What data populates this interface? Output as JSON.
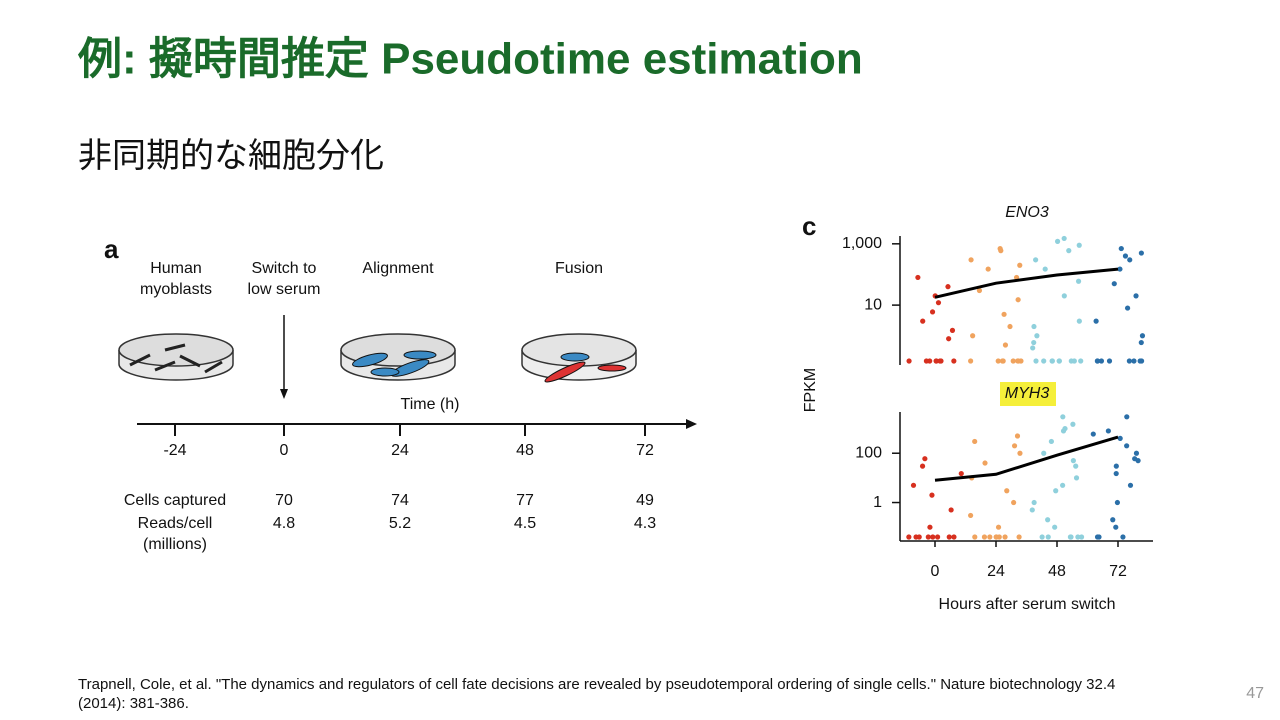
{
  "header": {
    "title": "例: 擬時間推定 Pseudotime estimation",
    "subtitle": "非同期的な細胞分化"
  },
  "panel_a": {
    "label": "a",
    "stages": [
      [
        "Human",
        "myoblasts"
      ],
      [
        "Switch to",
        "low serum"
      ],
      [
        "Alignment"
      ],
      [
        "Fusion"
      ]
    ],
    "axis_label": "Time (h)",
    "times": [
      -24,
      0,
      24,
      48,
      72
    ],
    "rows": [
      {
        "label": [
          "Cells captured"
        ],
        "values": [
          70,
          74,
          77,
          49
        ]
      },
      {
        "label": [
          "Reads/cell",
          "(millions)"
        ],
        "values": [
          4.8,
          5.2,
          4.5,
          4.3
        ]
      }
    ]
  },
  "panel_c": {
    "label": "c",
    "ylabel": "FPKM"
  },
  "chart_data": [
    {
      "type": "scatter",
      "title": "ENO3",
      "log_scale": true,
      "ylim": [
        0.15,
        1800
      ],
      "yticks": [
        {
          "value": 1000,
          "label": "1,000"
        },
        10
      ],
      "groups": [
        {
          "color": "#d7301f",
          "values": [
            80,
            40,
            12,
            6,
            3,
            1.5,
            0.8,
            20,
            0.15,
            0.15,
            0.15,
            0.15,
            0.15,
            0.15,
            0.15,
            0.15
          ]
        },
        {
          "color": "#f0a35e",
          "values": [
            600,
            300,
            150,
            80,
            30,
            15,
            5,
            2,
            1,
            0.5,
            200,
            700,
            0.15,
            0.15,
            0.15,
            0.15,
            0.15,
            0.15,
            0.15,
            0.15
          ]
        },
        {
          "color": "#8fd0dc",
          "values": [
            1500,
            1200,
            900,
            600,
            300,
            150,
            60,
            20,
            3,
            2,
            1,
            0.6,
            0.4,
            0.15,
            0.15,
            0.15,
            0.15,
            0.15,
            0.15,
            0.15,
            0.15,
            0.15
          ]
        },
        {
          "color": "#2b6fa8",
          "values": [
            700,
            500,
            300,
            150,
            50,
            20,
            8,
            3,
            1,
            0.6,
            400,
            0.15,
            0.15,
            0.15,
            0.15,
            0.15,
            0.15,
            0.15,
            0.15
          ]
        }
      ],
      "trend": {
        "color": "#000000",
        "values": [
          18,
          52,
          96,
          150
        ]
      }
    },
    {
      "type": "scatter",
      "title": "MYH3",
      "title_background": "#f5ef3a",
      "log_scale": true,
      "ylim": [
        0.04,
        4700
      ],
      "yticks": [
        100,
        1
      ],
      "categories": [
        0,
        24,
        48,
        72
      ],
      "xlabel": "Hours after serum switch",
      "groups": [
        {
          "color": "#d7301f",
          "values": [
            30,
            15,
            5,
            2,
            0.5,
            0.1,
            60,
            0.04,
            0.04,
            0.04,
            0.04,
            0.04,
            0.04,
            0.04,
            0.04
          ]
        },
        {
          "color": "#f0a35e",
          "values": [
            500,
            300,
            100,
            40,
            10,
            3,
            1,
            0.3,
            0.1,
            200,
            0.04,
            0.04,
            0.04,
            0.04,
            0.04,
            0.04,
            0.04,
            0.04
          ]
        },
        {
          "color": "#8fd0dc",
          "values": [
            3000,
            1500,
            800,
            300,
            100,
            30,
            10,
            3,
            1,
            0.5,
            0.2,
            0.1,
            1000,
            50,
            5,
            0.04,
            0.04,
            0.04,
            0.04,
            0.04,
            0.04
          ]
        },
        {
          "color": "#2b6fa8",
          "values": [
            3000,
            800,
            400,
            200,
            100,
            50,
            30,
            15,
            5,
            1,
            0.2,
            0.1,
            600,
            60,
            0.04,
            0.04,
            0.04
          ]
        }
      ],
      "trend": {
        "color": "#000000",
        "values": [
          8,
          14,
          83,
          450
        ]
      }
    }
  ],
  "footer": {
    "citation": [
      "Trapnell, Cole, et al. \"The dynamics and regulators of cell fate decisions are revealed by pseudotemporal ordering of single cells.\" Nature biotechnology 32.4",
      "(2014): 381-386."
    ],
    "page_number": 47
  }
}
